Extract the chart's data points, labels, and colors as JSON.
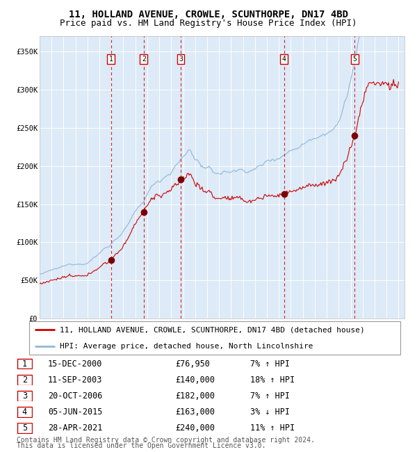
{
  "title": "11, HOLLAND AVENUE, CROWLE, SCUNTHORPE, DN17 4BD",
  "subtitle": "Price paid vs. HM Land Registry's House Price Index (HPI)",
  "ylim": [
    0,
    370000
  ],
  "yticks": [
    0,
    50000,
    100000,
    150000,
    200000,
    250000,
    300000,
    350000
  ],
  "ytick_labels": [
    "£0",
    "£50K",
    "£100K",
    "£150K",
    "£200K",
    "£250K",
    "£300K",
    "£350K"
  ],
  "xstart_year": 1995,
  "xend_year": 2025,
  "background_color": "#ffffff",
  "chart_bg_color": "#ddeaf7",
  "grid_color": "#ffffff",
  "hpi_line_color": "#90b8d8",
  "price_line_color": "#cc0000",
  "sale_marker_color": "#7a0000",
  "vline_color": "#cc0000",
  "sale_events": [
    {
      "label": "1",
      "date_yr": 2000.96,
      "price": 76950
    },
    {
      "label": "2",
      "date_yr": 2003.7,
      "price": 140000
    },
    {
      "label": "3",
      "date_yr": 2006.8,
      "price": 182000
    },
    {
      "label": "4",
      "date_yr": 2015.43,
      "price": 163000
    },
    {
      "label": "5",
      "date_yr": 2021.33,
      "price": 240000
    }
  ],
  "table_rows": [
    {
      "num": "1",
      "date": "15-DEC-2000",
      "price": "£76,950",
      "hpi": "7% ↑ HPI"
    },
    {
      "num": "2",
      "date": "11-SEP-2003",
      "price": "£140,000",
      "hpi": "18% ↑ HPI"
    },
    {
      "num": "3",
      "date": "20-OCT-2006",
      "price": "£182,000",
      "hpi": "7% ↑ HPI"
    },
    {
      "num": "4",
      "date": "05-JUN-2015",
      "price": "£163,000",
      "hpi": "3% ↓ HPI"
    },
    {
      "num": "5",
      "date": "28-APR-2021",
      "price": "£240,000",
      "hpi": "11% ↑ HPI"
    }
  ],
  "legend_line1": "11, HOLLAND AVENUE, CROWLE, SCUNTHORPE, DN17 4BD (detached house)",
  "legend_line2": "HPI: Average price, detached house, North Lincolnshire",
  "footnote1": "Contains HM Land Registry data © Crown copyright and database right 2024.",
  "footnote2": "This data is licensed under the Open Government Licence v3.0.",
  "title_fontsize": 10,
  "subtitle_fontsize": 9,
  "tick_fontsize": 7.5,
  "legend_fontsize": 8,
  "table_fontsize": 8.5,
  "footnote_fontsize": 7
}
